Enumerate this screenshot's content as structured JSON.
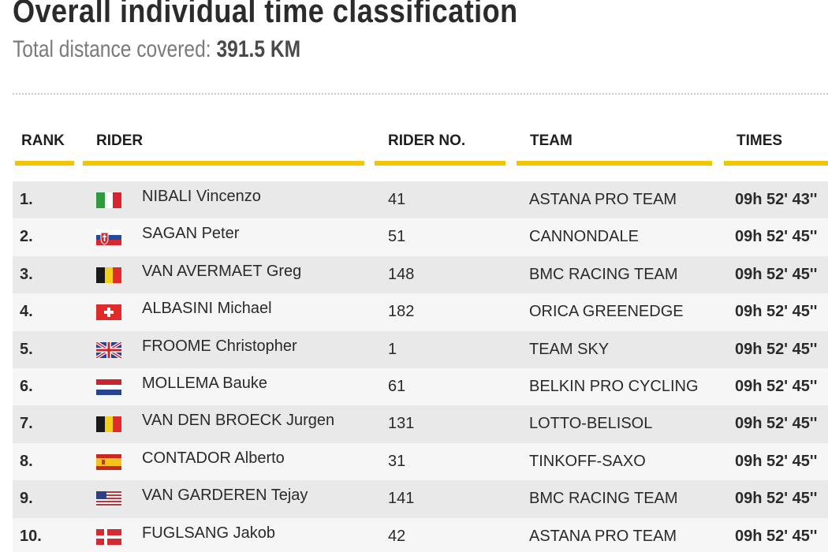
{
  "header": {
    "title": "Overall individual time classification",
    "subtitle_label": "Total distance covered:",
    "distance": "391.5 KM"
  },
  "table": {
    "columns": {
      "rank": "RANK",
      "rider": "RIDER",
      "rider_no": "RIDER NO.",
      "team": "TEAM",
      "times": "TIMES"
    },
    "rows": [
      {
        "rank": "1.",
        "flag": "italy-flag-icon",
        "rider": "NIBALI Vincenzo",
        "number": "41",
        "team": "ASTANA PRO TEAM",
        "time": "09h 52' 43''"
      },
      {
        "rank": "2.",
        "flag": "slovakia-flag-icon",
        "rider": "SAGAN Peter",
        "number": "51",
        "team": "CANNONDALE",
        "time": "09h 52' 45''"
      },
      {
        "rank": "3.",
        "flag": "belgium-flag-icon",
        "rider": "VAN AVERMAET Greg",
        "number": "148",
        "team": "BMC RACING TEAM",
        "time": "09h 52' 45''"
      },
      {
        "rank": "4.",
        "flag": "switzerland-flag-icon",
        "rider": "ALBASINI Michael",
        "number": "182",
        "team": "ORICA GREENEDGE",
        "time": "09h 52' 45''"
      },
      {
        "rank": "5.",
        "flag": "united-kingdom-flag-icon",
        "rider": "FROOME Christopher",
        "number": "1",
        "team": "TEAM SKY",
        "time": "09h 52' 45''"
      },
      {
        "rank": "6.",
        "flag": "netherlands-flag-icon",
        "rider": "MOLLEMA Bauke",
        "number": "61",
        "team": "BELKIN PRO CYCLING",
        "time": "09h 52' 45''"
      },
      {
        "rank": "7.",
        "flag": "belgium-flag-icon",
        "rider": "VAN DEN BROECK Jurgen",
        "number": "131",
        "team": "LOTTO-BELISOL",
        "time": "09h 52' 45''"
      },
      {
        "rank": "8.",
        "flag": "spain-flag-icon",
        "rider": "CONTADOR Alberto",
        "number": "31",
        "team": "TINKOFF-SAXO",
        "time": "09h 52' 45''"
      },
      {
        "rank": "9.",
        "flag": "usa-flag-icon",
        "rider": "VAN GARDEREN Tejay",
        "number": "141",
        "team": "BMC RACING TEAM",
        "time": "09h 52' 45''"
      },
      {
        "rank": "10.",
        "flag": "denmark-flag-icon",
        "rider": "FUGLSANG Jakob",
        "number": "42",
        "team": "ASTANA PRO TEAM",
        "time": "09h 52' 45''"
      }
    ]
  },
  "colors": {
    "accent": "#f2c500",
    "row_dark": "#e9e9e9",
    "row_light": "#f6f6f6"
  }
}
